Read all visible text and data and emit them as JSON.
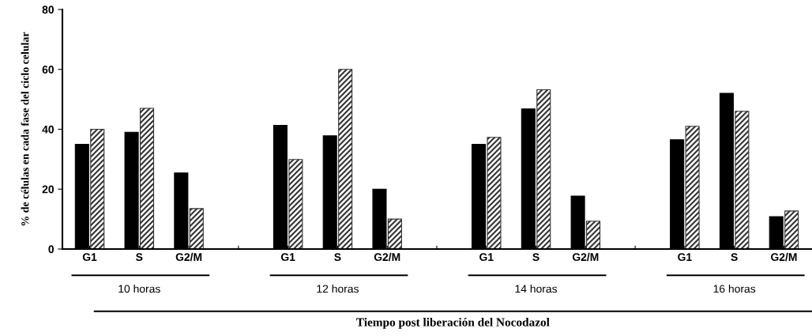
{
  "chart_data": {
    "type": "bar",
    "categories": [
      "G1",
      "S",
      "G2/M",
      null,
      "G1",
      "S",
      "G2/M",
      null,
      "G1",
      "S",
      "G2/M",
      null,
      "G1",
      "S",
      "G2/M"
    ],
    "series": [
      {
        "color": "#000000",
        "values": [
          35,
          39,
          25.4,
          null,
          41.3,
          37.8,
          20,
          null,
          35,
          46.8,
          17.7,
          null,
          36.5,
          52,
          10.8
        ]
      },
      {
        "color": "#333333",
        "values": [
          40,
          47,
          13.5,
          null,
          29.9,
          60,
          10,
          null,
          37.3,
          53.2,
          9.3,
          null,
          41,
          46,
          12.7
        ]
      }
    ],
    "ylabel": "% de células en cada fase del ciclo celular",
    "xlabel": "Tiempo post liberación del Nocodazol",
    "annotations": [
      "10 horas",
      "12 horas",
      "14 horas",
      "16 horas"
    ],
    "ylim": [
      0,
      80
    ],
    "yticks": [
      0,
      20,
      40,
      60,
      80
    ],
    "grid": false,
    "legend": false
  }
}
